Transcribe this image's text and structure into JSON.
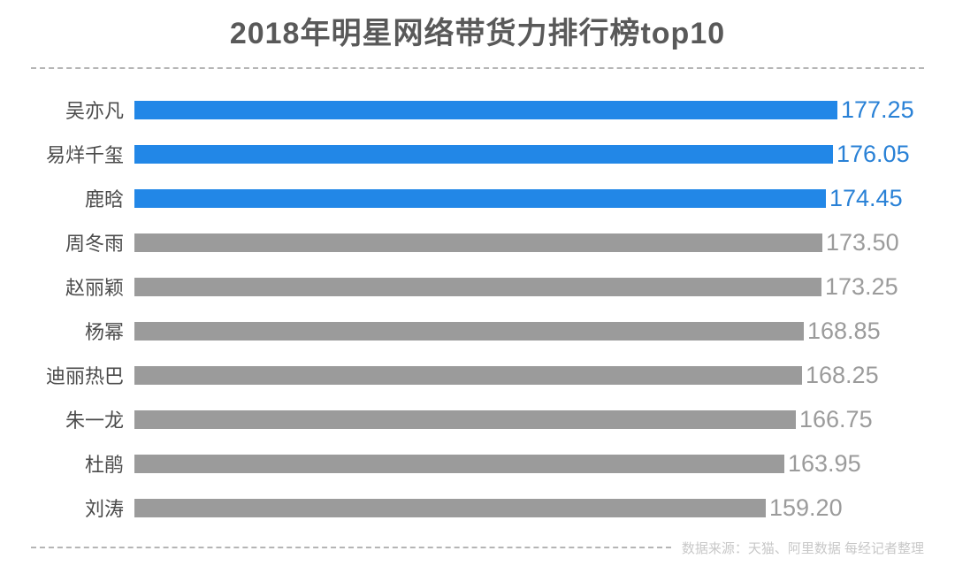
{
  "title": "2018年明星网络带货力排行榜top10",
  "footer": {
    "source_note": "数据来源：天猫、阿里数据  每经记者整理"
  },
  "colors": {
    "background": "#ffffff",
    "title_text": "#595959",
    "label_text": "#4b4b4b",
    "highlight_bar": "#2287e7",
    "default_bar": "#9b9b9b",
    "highlight_value_text": "#2981d6",
    "default_value_text": "#9b9b9b",
    "dashed_line": "#b5b5b5",
    "footer_text": "#c8c8c8"
  },
  "chart_data": {
    "type": "bar",
    "orientation": "horizontal",
    "title": "2018年明星网络带货力排行榜top10",
    "categories": [
      "吴亦凡",
      "易烊千玺",
      "鹿晗",
      "周冬雨",
      "赵丽颖",
      "杨幂",
      "迪丽热巴",
      "朱一龙",
      "杜鹃",
      "刘涛"
    ],
    "values": [
      177.25,
      176.05,
      174.45,
      173.5,
      173.25,
      168.85,
      168.25,
      166.75,
      163.95,
      159.2
    ],
    "value_labels": [
      "177.25",
      "176.05",
      "174.45",
      "173.50",
      "173.25",
      "168.85",
      "168.25",
      "166.75",
      "163.95",
      "159.20"
    ],
    "highlighted_count": 3,
    "xlim": [
      0,
      198
    ],
    "grid": false,
    "legend": false,
    "xlabel": "",
    "ylabel": "",
    "source_note": "数据来源：天猫、阿里数据  每经记者整理"
  }
}
